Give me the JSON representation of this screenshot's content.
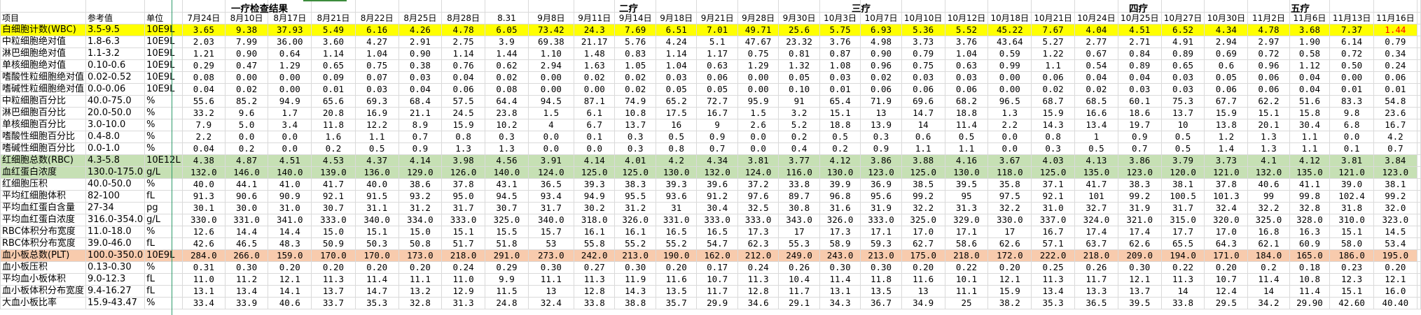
{
  "headers": {
    "item": "项目",
    "ref": "参考值",
    "unit": "单位"
  },
  "groups": [
    "一疗检查结果",
    "二疗",
    "三疗",
    "四疗",
    "五疗"
  ],
  "dates": [
    "7月24日",
    "8月10日",
    "8月17日",
    "8月21日",
    "8月22日",
    "8月25日",
    "8月28日",
    "8.31",
    "9月8日",
    "9月11日",
    "9月14日",
    "9月18日",
    "9月21日",
    "9月28日",
    "9月30日",
    "10月3日",
    "10月7日",
    "10月10日",
    "10月12日",
    "10月18日",
    "10月21日",
    "10月24日",
    "10月25日",
    "10月27日",
    "10月30日",
    "11月2日",
    "11月6日",
    "11月13日",
    "11月16日"
  ],
  "colors": {
    "wbc_row": "#ffff00",
    "rbc_row": "#c6e0b4",
    "plt_row": "#f8cbad",
    "alert_text": "#ff0000"
  },
  "rows": [
    {
      "name": "白细胞计数(WBC)",
      "ref": "3.5-9.5",
      "unit": "10E9L",
      "highlight": "wbc_row",
      "alert": [
        28
      ],
      "values": [
        "3.65",
        "9.38",
        "37.93",
        "5.49",
        "6.16",
        "4.26",
        "4.78",
        "6.05",
        "73.42",
        "24.3",
        "7.69",
        "6.51",
        "7.01",
        "49.71",
        "25.6",
        "5.75",
        "6.93",
        "5.36",
        "5.52",
        "45.22",
        "7.67",
        "4.04",
        "4.51",
        "6.52",
        "4.34",
        "4.78",
        "3.68",
        "7.37",
        "1.44"
      ]
    },
    {
      "name": "中粒细胞绝对值",
      "ref": "1.8-6.3",
      "unit": "10E9L",
      "values": [
        "2.03",
        "7.99",
        "36.00",
        "3.60",
        "4.27",
        "2.91",
        "2.75",
        "3.9",
        "69.38",
        "21.17",
        "5.76",
        "4.24",
        "5.1",
        "47.67",
        "23.32",
        "3.76",
        "4.98",
        "3.73",
        "3.76",
        "43.64",
        "5.27",
        "2.77",
        "2.71",
        "4.91",
        "2.94",
        "2.97",
        "1.90",
        "6.14",
        "0.79"
      ]
    },
    {
      "name": "淋巴细胞绝对值",
      "ref": "1.1-3.2",
      "unit": "10E9L",
      "values": [
        "1.21",
        "0.90",
        "0.64",
        "1.14",
        "1.04",
        "0.90",
        "1.14",
        "1.44",
        "1.10",
        "1.48",
        "0.83",
        "1.14",
        "1.17",
        "0.75",
        "0.81",
        "0.87",
        "0.90",
        "0.79",
        "1.04",
        "0.59",
        "1.22",
        "0.67",
        "0.84",
        "0.89",
        "0.69",
        "0.72",
        "0.58",
        "0.72",
        "0.34"
      ]
    },
    {
      "name": "单核细胞绝对值",
      "ref": "0.10-0.6",
      "unit": "10E9L",
      "values": [
        "0.29",
        "0.47",
        "1.29",
        "0.65",
        "0.75",
        "0.38",
        "0.76",
        "0.62",
        "2.94",
        "1.63",
        "1.05",
        "1.04",
        "0.63",
        "1.29",
        "1.32",
        "1.08",
        "0.96",
        "0.75",
        "0.63",
        "0.99",
        "1.1",
        "0.54",
        "0.89",
        "0.65",
        "0.6",
        "0.96",
        "1.12",
        "0.50",
        "0.24"
      ]
    },
    {
      "name": "嗜酸性粒细胞绝对值",
      "ref": "0.02-0.52",
      "unit": "10E9L",
      "values": [
        "0.08",
        "0.00",
        "0.00",
        "0.09",
        "0.07",
        "0.03",
        "0.04",
        "0.02",
        "0.00",
        "0.02",
        "0.02",
        "0.03",
        "0.06",
        "0.00",
        "0.05",
        "0.03",
        "0.02",
        "0.03",
        "0.03",
        "0.00",
        "0.06",
        "0.04",
        "0.04",
        "0.03",
        "0.05",
        "0.06",
        "0.04",
        "0.00",
        "0.06"
      ]
    },
    {
      "name": "嗜碱性粒细胞绝对值",
      "ref": "0.0-0.06",
      "unit": "10E9L",
      "values": [
        "0.04",
        "0.02",
        "0.00",
        "0.01",
        "0.03",
        "0.04",
        "0.06",
        "0.08",
        "0.00",
        "0.00",
        "0.02",
        "0.05",
        "0.05",
        "0.00",
        "0.10",
        "0.01",
        "0.06",
        "0.06",
        "0.06",
        "0.00",
        "0.02",
        "0.02",
        "0.03",
        "0.03",
        "0.06",
        "0.06",
        "0.04",
        "0.01",
        "0.01"
      ]
    },
    {
      "name": "中粒细胞百分比",
      "ref": "40.0-75.0",
      "unit": "%",
      "values": [
        "55.6",
        "85.2",
        "94.9",
        "65.6",
        "69.3",
        "68.4",
        "57.5",
        "64.4",
        "94.5",
        "87.1",
        "74.9",
        "65.2",
        "72.7",
        "95.9",
        "91",
        "65.4",
        "71.9",
        "69.6",
        "68.2",
        "96.5",
        "68.7",
        "68.5",
        "60.1",
        "75.3",
        "67.7",
        "62.2",
        "51.6",
        "83.3",
        "54.8"
      ]
    },
    {
      "name": "淋巴细胞百分比",
      "ref": "20.0-50.0",
      "unit": "%",
      "values": [
        "33.2",
        "9.6",
        "1.7",
        "20.8",
        "16.9",
        "21.1",
        "24.5",
        "23.8",
        "1.5",
        "6.1",
        "10.8",
        "17.5",
        "16.7",
        "1.5",
        "3.2",
        "15.1",
        "13",
        "14.7",
        "18.8",
        "1.3",
        "15.9",
        "16.6",
        "18.6",
        "13.7",
        "15.9",
        "15.1",
        "15.8",
        "9.8",
        "23.6"
      ]
    },
    {
      "name": "单核细胞百分比",
      "ref": "3.0-10.0",
      "unit": "%",
      "values": [
        "7.9",
        "5.0",
        "3.4",
        "11.8",
        "12.2",
        "8.9",
        "15.9",
        "10.2",
        "4",
        "6.7",
        "13.7",
        "16",
        "9",
        "2.6",
        "5.2",
        "18.8",
        "13.9",
        "14",
        "11.4",
        "2.2",
        "14.3",
        "13.4",
        "19.7",
        "10",
        "13.8",
        "20.1",
        "30.4",
        "6.8",
        "16.7"
      ]
    },
    {
      "name": "嗜酸性细胞百分比",
      "ref": "0.4-8.0",
      "unit": "%",
      "values": [
        "2.2",
        "0.0",
        "0.0",
        "1.6",
        "1.1",
        "0.7",
        "0.8",
        "0.3",
        "0.0",
        "0.1",
        "0.3",
        "0.5",
        "0.9",
        "0.0",
        "0.2",
        "0.5",
        "0.3",
        "0.6",
        "0.5",
        "0.0",
        "0.8",
        "1",
        "0.9",
        "0.5",
        "1.2",
        "1.3",
        "1.1",
        "0.0",
        "4.2"
      ]
    },
    {
      "name": "嗜碱性细胞百分比",
      "ref": "0.0-1.0",
      "unit": "%",
      "values": [
        "0.04",
        "0.2",
        "0.0",
        "0.2",
        "0.5",
        "0.9",
        "1.3",
        "1.3",
        "0.0",
        "0.0",
        "0.3",
        "0.8",
        "0.7",
        "0.0",
        "0.4",
        "0.2",
        "0.9",
        "1.1",
        "1.1",
        "0.0",
        "0.3",
        "0.5",
        "0.7",
        "0.5",
        "1.4",
        "1.3",
        "1.1",
        "0.1",
        "0.7"
      ]
    },
    {
      "name": "红细胞总数(RBC)",
      "ref": "4.3-5.8",
      "unit": "10E12L",
      "highlight": "rbc_row",
      "values": [
        "4.38",
        "4.87",
        "4.51",
        "4.53",
        "4.37",
        "4.14",
        "3.98",
        "4.56",
        "3.91",
        "4.14",
        "4.01",
        "4.2",
        "4.34",
        "3.81",
        "3.77",
        "4.12",
        "3.86",
        "3.88",
        "4.16",
        "3.67",
        "4.03",
        "4.13",
        "3.86",
        "3.79",
        "3.73",
        "4.1",
        "4.12",
        "3.81",
        "3.84"
      ]
    },
    {
      "name": "血红蛋白浓度",
      "ref": "130.0-175.0",
      "unit": "g/L",
      "highlight": "rbc_row",
      "values": [
        "132.0",
        "146.0",
        "140.0",
        "139.0",
        "136.0",
        "129.0",
        "126.0",
        "140.0",
        "124.0",
        "125.0",
        "125.0",
        "130.0",
        "132.0",
        "124.0",
        "116.0",
        "130.0",
        "123.0",
        "125.0",
        "130.0",
        "118.0",
        "125.0",
        "135.0",
        "123.0",
        "120.0",
        "121.0",
        "132.0",
        "135.0",
        "121.0",
        "123.0"
      ]
    },
    {
      "name": "红细胞压积",
      "ref": "40.0-50.0",
      "unit": "%",
      "values": [
        "40.0",
        "44.1",
        "41.0",
        "41.7",
        "40.0",
        "38.6",
        "37.8",
        "43.1",
        "36.5",
        "39.3",
        "38.3",
        "39.3",
        "39.6",
        "37.2",
        "33.8",
        "39.9",
        "36.9",
        "38.5",
        "39.5",
        "35.8",
        "37.1",
        "41.7",
        "38.3",
        "38.1",
        "37.8",
        "40.6",
        "41.1",
        "39.0",
        "38.1"
      ]
    },
    {
      "name": "平均红细胞体积",
      "ref": "82-100",
      "unit": "fL",
      "values": [
        "91.3",
        "90.6",
        "90.9",
        "92.1",
        "91.5",
        "93.2",
        "95.0",
        "94.5",
        "93.4",
        "94.9",
        "95.5",
        "93.6",
        "91.2",
        "97.6",
        "89.7",
        "96.8",
        "95.6",
        "99.2",
        "95",
        "97.5",
        "92.1",
        "101",
        "99.2",
        "100.5",
        "101.3",
        "99",
        "99.8",
        "102.4",
        "99.2"
      ]
    },
    {
      "name": "平均血红蛋白含量",
      "ref": "27-34",
      "unit": "pg",
      "values": [
        "30.1",
        "30.0",
        "31.0",
        "30.7",
        "31.1",
        "31.2",
        "31.7",
        "30.7",
        "31.7",
        "30.2",
        "31.2",
        "31",
        "30.4",
        "32.5",
        "30.8",
        "31.6",
        "31.9",
        "32.2",
        "31.3",
        "32.2",
        "31.0",
        "32.7",
        "31.9",
        "31.7",
        "32.4",
        "32.2",
        "32.8",
        "31.8",
        "32.0"
      ]
    },
    {
      "name": "平均血红蛋白浓度",
      "ref": "316.0-354.0",
      "unit": "g/L",
      "values": [
        "330.0",
        "331.0",
        "341.0",
        "333.0",
        "340.0",
        "334.0",
        "333.0",
        "325.0",
        "340.0",
        "318.0",
        "326.0",
        "331.0",
        "333.0",
        "333.0",
        "343.0",
        "326.0",
        "333.0",
        "325.0",
        "329.0",
        "330.0",
        "337.0",
        "324.0",
        "321.0",
        "315.0",
        "320.0",
        "325.0",
        "328.0",
        "310.0",
        "323.0"
      ]
    },
    {
      "name": "RBC体积分布宽度",
      "ref": "11.0-18.0",
      "unit": "%",
      "values": [
        "12.6",
        "14.4",
        "14.4",
        "15.0",
        "15.1",
        "15.0",
        "15.1",
        "15.5",
        "15.7",
        "16.1",
        "16.1",
        "16.5",
        "16.5",
        "17.3",
        "17",
        "17.3",
        "17.1",
        "17.0",
        "17.1",
        "17",
        "16.7",
        "17.4",
        "17.4",
        "17.7",
        "17.0",
        "16.8",
        "16.3",
        "15.1",
        "14.5"
      ]
    },
    {
      "name": "RBC体积分布宽度",
      "ref": "39.0-46.0",
      "unit": "fL",
      "values": [
        "42.6",
        "46.5",
        "48.3",
        "50.9",
        "50.3",
        "50.8",
        "51.7",
        "51.8",
        "53",
        "55.8",
        "55.2",
        "55.2",
        "54.7",
        "62.3",
        "55.3",
        "58.9",
        "59.3",
        "62.7",
        "58.6",
        "62.6",
        "57.1",
        "63.7",
        "62.6",
        "65.5",
        "64.3",
        "62.1",
        "60.9",
        "58.0",
        "53.4"
      ]
    },
    {
      "name": "血小板总数(PLT)",
      "ref": "100.0-350.0",
      "unit": "10E9L",
      "highlight": "plt_row",
      "values": [
        "284.0",
        "266.0",
        "159.0",
        "170.0",
        "170.0",
        "173.0",
        "218.0",
        "291.0",
        "273.0",
        "242.0",
        "213.0",
        "190.0",
        "162.0",
        "212.0",
        "249.0",
        "243.0",
        "213.0",
        "175.0",
        "218.0",
        "172.0",
        "222.0",
        "218.0",
        "209.0",
        "194.0",
        "171.0",
        "184.0",
        "165.0",
        "186.0",
        "195.0"
      ]
    },
    {
      "name": "血小板压积",
      "ref": "0.13-0.30",
      "unit": "%",
      "values": [
        "0.31",
        "0.30",
        "0.20",
        "0.20",
        "0.20",
        "0.20",
        "0.24",
        "0.29",
        "0.30",
        "0.27",
        "0.30",
        "0.20",
        "0.17",
        "0.24",
        "0.26",
        "0.30",
        "0.30",
        "0.20",
        "0.22",
        "0.20",
        "0.25",
        "0.26",
        "0.30",
        "0.22",
        "0.20",
        "0.2",
        "0.18",
        "0.23",
        "0.20"
      ]
    },
    {
      "name": "平均血小板体积",
      "ref": "9.0-12.3",
      "unit": "fL",
      "values": [
        "11.0",
        "11.2",
        "12.1",
        "11.3",
        "11.4",
        "11.1",
        "11.0",
        "9.9",
        "11.1",
        "11.3",
        "11.9",
        "11.6",
        "10.7",
        "11.3",
        "10.4",
        "11.4",
        "11.8",
        "11.6",
        "10.1",
        "12.1",
        "11.3",
        "11.7",
        "12.1",
        "11.3",
        "10.7",
        "11.4",
        "10.8",
        "12.3",
        "12.1"
      ]
    },
    {
      "name": "血小板体积分布宽度",
      "ref": "9.4-16.27",
      "unit": "fL",
      "values": [
        "13.1",
        "13.4",
        "14.1",
        "13.7",
        "14.7",
        "13.2",
        "12.9",
        "11.5",
        "13",
        "12.8",
        "14.3",
        "13.5",
        "11.7",
        "12.8",
        "11.7",
        "13.1",
        "13.5",
        "13",
        "11.1",
        "15.9",
        "13.4",
        "13.3",
        "13.7",
        "14",
        "12.4",
        "14",
        "11.4",
        "15.1",
        "16.0"
      ]
    },
    {
      "name": "大血小板比率",
      "ref": "15.9-43.47",
      "unit": "%",
      "values": [
        "33.4",
        "33.9",
        "40.6",
        "33.7",
        "35.3",
        "32.8",
        "31.3",
        "24.8",
        "32.4",
        "33.8",
        "38.8",
        "35.7",
        "29.9",
        "34.6",
        "29.1",
        "34.3",
        "36.7",
        "34.9",
        "25",
        "38.2",
        "35.3",
        "36.5",
        "39.5",
        "33.8",
        "29.5",
        "34.2",
        "29.90",
        "42.60",
        "40.40"
      ]
    }
  ]
}
